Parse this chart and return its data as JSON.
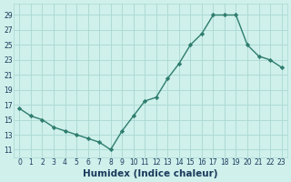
{
  "x": [
    0,
    1,
    2,
    3,
    4,
    5,
    6,
    7,
    8,
    9,
    10,
    11,
    12,
    13,
    14,
    15,
    16,
    17,
    18,
    19,
    20,
    21,
    22,
    23
  ],
  "y": [
    16.5,
    15.5,
    15.0,
    14.0,
    13.5,
    13.0,
    12.5,
    12.0,
    11.0,
    13.5,
    15.5,
    17.5,
    18.0,
    20.5,
    22.5,
    25.0,
    26.5,
    29.0,
    29.0,
    29.0,
    25.0,
    23.5,
    23.0,
    22.0
  ],
  "line_color": "#2e7d6e",
  "marker": "D",
  "markersize": 2.2,
  "linewidth": 1.0,
  "bg_color": "#cff0eb",
  "grid_color": "#aad8d3",
  "xlabel": "Humidex (Indice chaleur)",
  "xlabel_fontsize": 7.5,
  "ylabel_ticks": [
    11,
    13,
    15,
    17,
    19,
    21,
    23,
    25,
    27,
    29
  ],
  "ylim": [
    10.0,
    30.5
  ],
  "xlim": [
    -0.5,
    23.5
  ],
  "xticks": [
    0,
    1,
    2,
    3,
    4,
    5,
    6,
    7,
    8,
    9,
    10,
    11,
    12,
    13,
    14,
    15,
    16,
    17,
    18,
    19,
    20,
    21,
    22,
    23
  ],
  "tick_fontsize": 5.5,
  "tick_color": "#1a3a5c",
  "spine_color": "#aad8d3"
}
